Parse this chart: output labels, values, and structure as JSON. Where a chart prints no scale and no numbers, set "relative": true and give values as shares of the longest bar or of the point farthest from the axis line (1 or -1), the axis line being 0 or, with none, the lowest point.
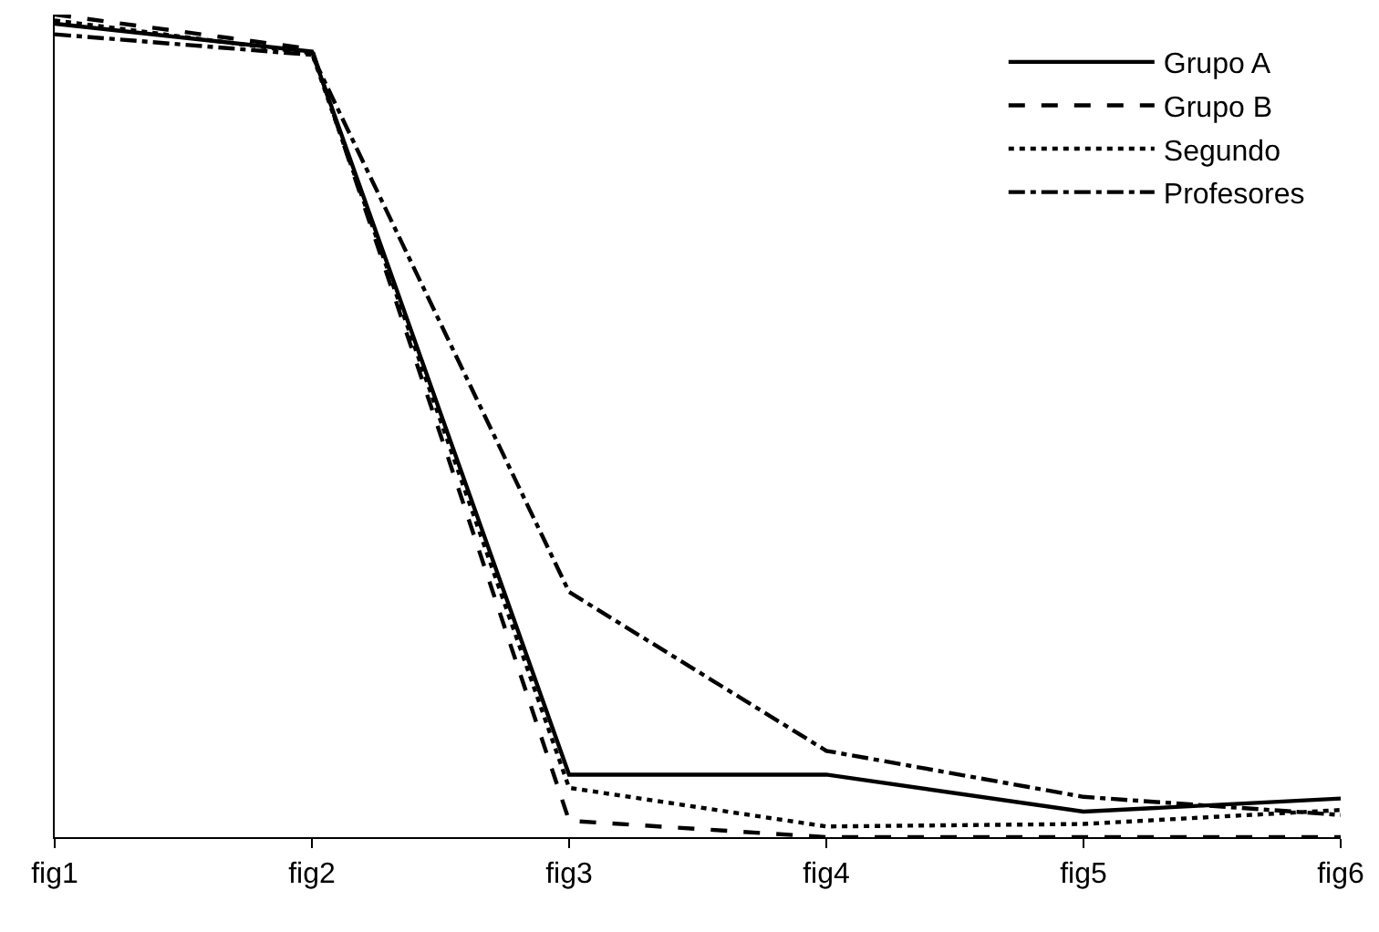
{
  "chart_data": {
    "type": "line",
    "relative": true,
    "categories": [
      "fig1",
      "fig2",
      "fig3",
      "fig4",
      "fig5",
      "fig6"
    ],
    "series": [
      {
        "name": "Grupo A",
        "color": "#000000",
        "line_style": "solid",
        "values": [
          0.989,
          0.955,
          0.076,
          0.076,
          0.031,
          0.047
        ]
      },
      {
        "name": "Grupo B",
        "color": "#000000",
        "line_style": "dashed",
        "values": [
          1.0,
          0.958,
          0.02,
          0,
          0,
          0
        ]
      },
      {
        "name": "Segundo",
        "color": "#000000",
        "line_style": "dotted",
        "values": [
          0.993,
          0.953,
          0.06,
          0.013,
          0.016,
          0.033
        ]
      },
      {
        "name": "Profesores",
        "color": "#000000",
        "line_style": "dashdot",
        "values": [
          0.976,
          0.951,
          0.298,
          0.105,
          0.049,
          0.027
        ]
      }
    ],
    "legend": "top right",
    "marker": "none"
  }
}
